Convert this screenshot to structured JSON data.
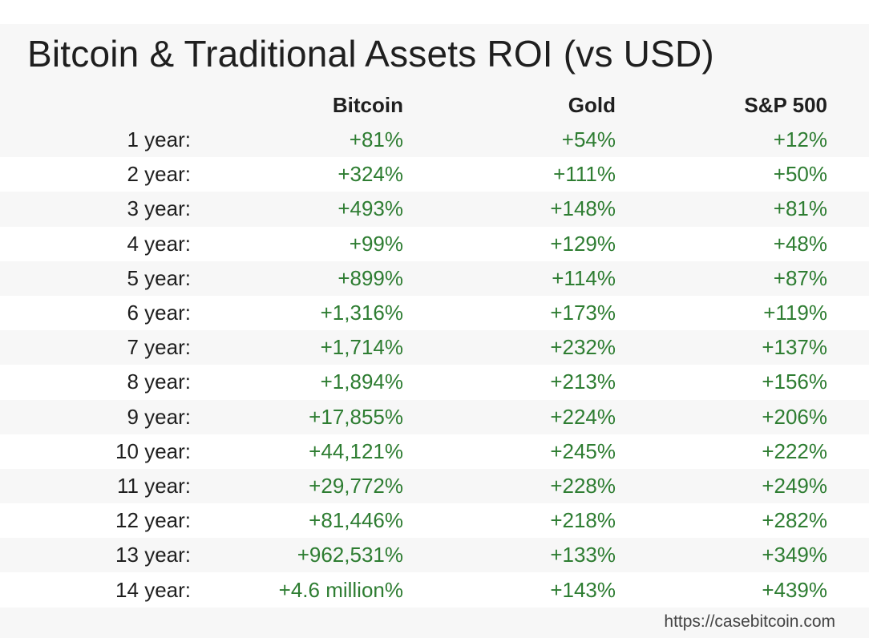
{
  "title": "Bitcoin & Traditional Assets ROI (vs USD)",
  "footer": "https://casebitcoin.com",
  "colors": {
    "positive": "#2e7d32",
    "text": "#1f1f1f",
    "background": "#f7f7f7",
    "stripe": "#ffffff"
  },
  "chart_data": {
    "type": "table",
    "title": "Bitcoin & Traditional Assets ROI (vs USD)",
    "columns": [
      "Bitcoin",
      "Gold",
      "S&P 500"
    ],
    "rows": [
      {
        "label": "1 year:",
        "values": [
          "+81%",
          "+54%",
          "+12%"
        ]
      },
      {
        "label": "2 year:",
        "values": [
          "+324%",
          "+111%",
          "+50%"
        ]
      },
      {
        "label": "3 year:",
        "values": [
          "+493%",
          "+148%",
          "+81%"
        ]
      },
      {
        "label": "4 year:",
        "values": [
          "+99%",
          "+129%",
          "+48%"
        ]
      },
      {
        "label": "5 year:",
        "values": [
          "+899%",
          "+114%",
          "+87%"
        ]
      },
      {
        "label": "6 year:",
        "values": [
          "+1,316%",
          "+173%",
          "+119%"
        ]
      },
      {
        "label": "7 year:",
        "values": [
          "+1,714%",
          "+232%",
          "+137%"
        ]
      },
      {
        "label": "8 year:",
        "values": [
          "+1,894%",
          "+213%",
          "+156%"
        ]
      },
      {
        "label": "9 year:",
        "values": [
          "+17,855%",
          "+224%",
          "+206%"
        ]
      },
      {
        "label": "10 year:",
        "values": [
          "+44,121%",
          "+245%",
          "+222%"
        ]
      },
      {
        "label": "11 year:",
        "values": [
          "+29,772%",
          "+228%",
          "+249%"
        ]
      },
      {
        "label": "12 year:",
        "values": [
          "+81,446%",
          "+218%",
          "+282%"
        ]
      },
      {
        "label": "13 year:",
        "values": [
          "+962,531%",
          "+133%",
          "+349%"
        ]
      },
      {
        "label": "14 year:",
        "values": [
          "+4.6 million%",
          "+143%",
          "+439%"
        ]
      }
    ]
  }
}
